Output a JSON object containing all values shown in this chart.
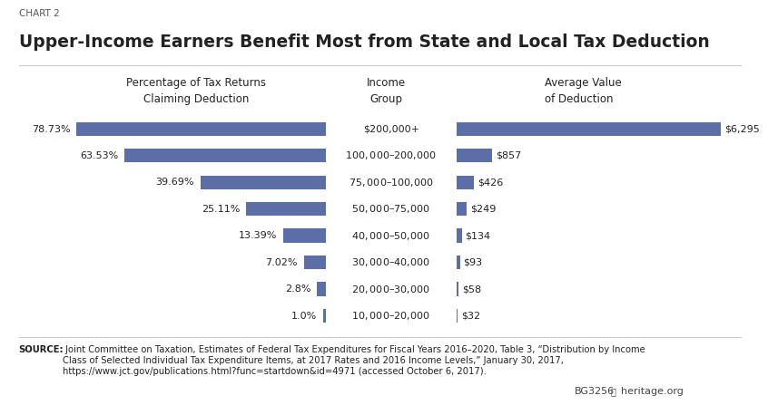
{
  "chart_label": "CHART 2",
  "title": "Upper-Income Earners Benefit Most from State and Local Tax Deduction",
  "income_groups": [
    "$200,000+",
    "$100,000–$200,000",
    "$75,000–$100,000",
    "$50,000–$75,000",
    "$40,000–$50,000",
    "$30,000–$40,000",
    "$20,000–$30,000",
    "$10,000–$20,000"
  ],
  "pct_values": [
    78.73,
    63.53,
    39.69,
    25.11,
    13.39,
    7.02,
    2.8,
    1.0
  ],
  "pct_labels": [
    "78.73%",
    "63.53%",
    "39.69%",
    "25.11%",
    "13.39%",
    "7.02%",
    "2.8%",
    "1.0%"
  ],
  "avg_values": [
    6295,
    857,
    426,
    249,
    134,
    93,
    58,
    32
  ],
  "avg_labels": [
    "$6,295",
    "$857",
    "$426",
    "$249",
    "$134",
    "$93",
    "$58",
    "$32"
  ],
  "bar_color": "#5b6ea8",
  "col1_header_line1": "Percentage of Tax Returns",
  "col1_header_line2": "Claiming Deduction",
  "col2_header_line1": "Income",
  "col2_header_line2": "Group",
  "col3_header_line1": "Average Value",
  "col3_header_line2": "of Deduction",
  "source_bold": "SOURCE:",
  "source_text": " Joint Committee on Taxation, Estimates of Federal Tax Expenditures for Fiscal Years 2016–2020, Table 3, “Distribution by Income\nClass of Selected Individual Tax Expenditure Items, at 2017 Rates and 2016 Income Levels,” January 30, 2017,\nhttps://www.jct.gov/publications.html?func=startdown&id=4971 (accessed October 6, 2017).",
  "bg_color": "#ffffff",
  "text_color": "#222222",
  "footnote_id": "BG3256",
  "footnote_org": "heritage.org",
  "pct_max": 100,
  "avg_max": 7000
}
